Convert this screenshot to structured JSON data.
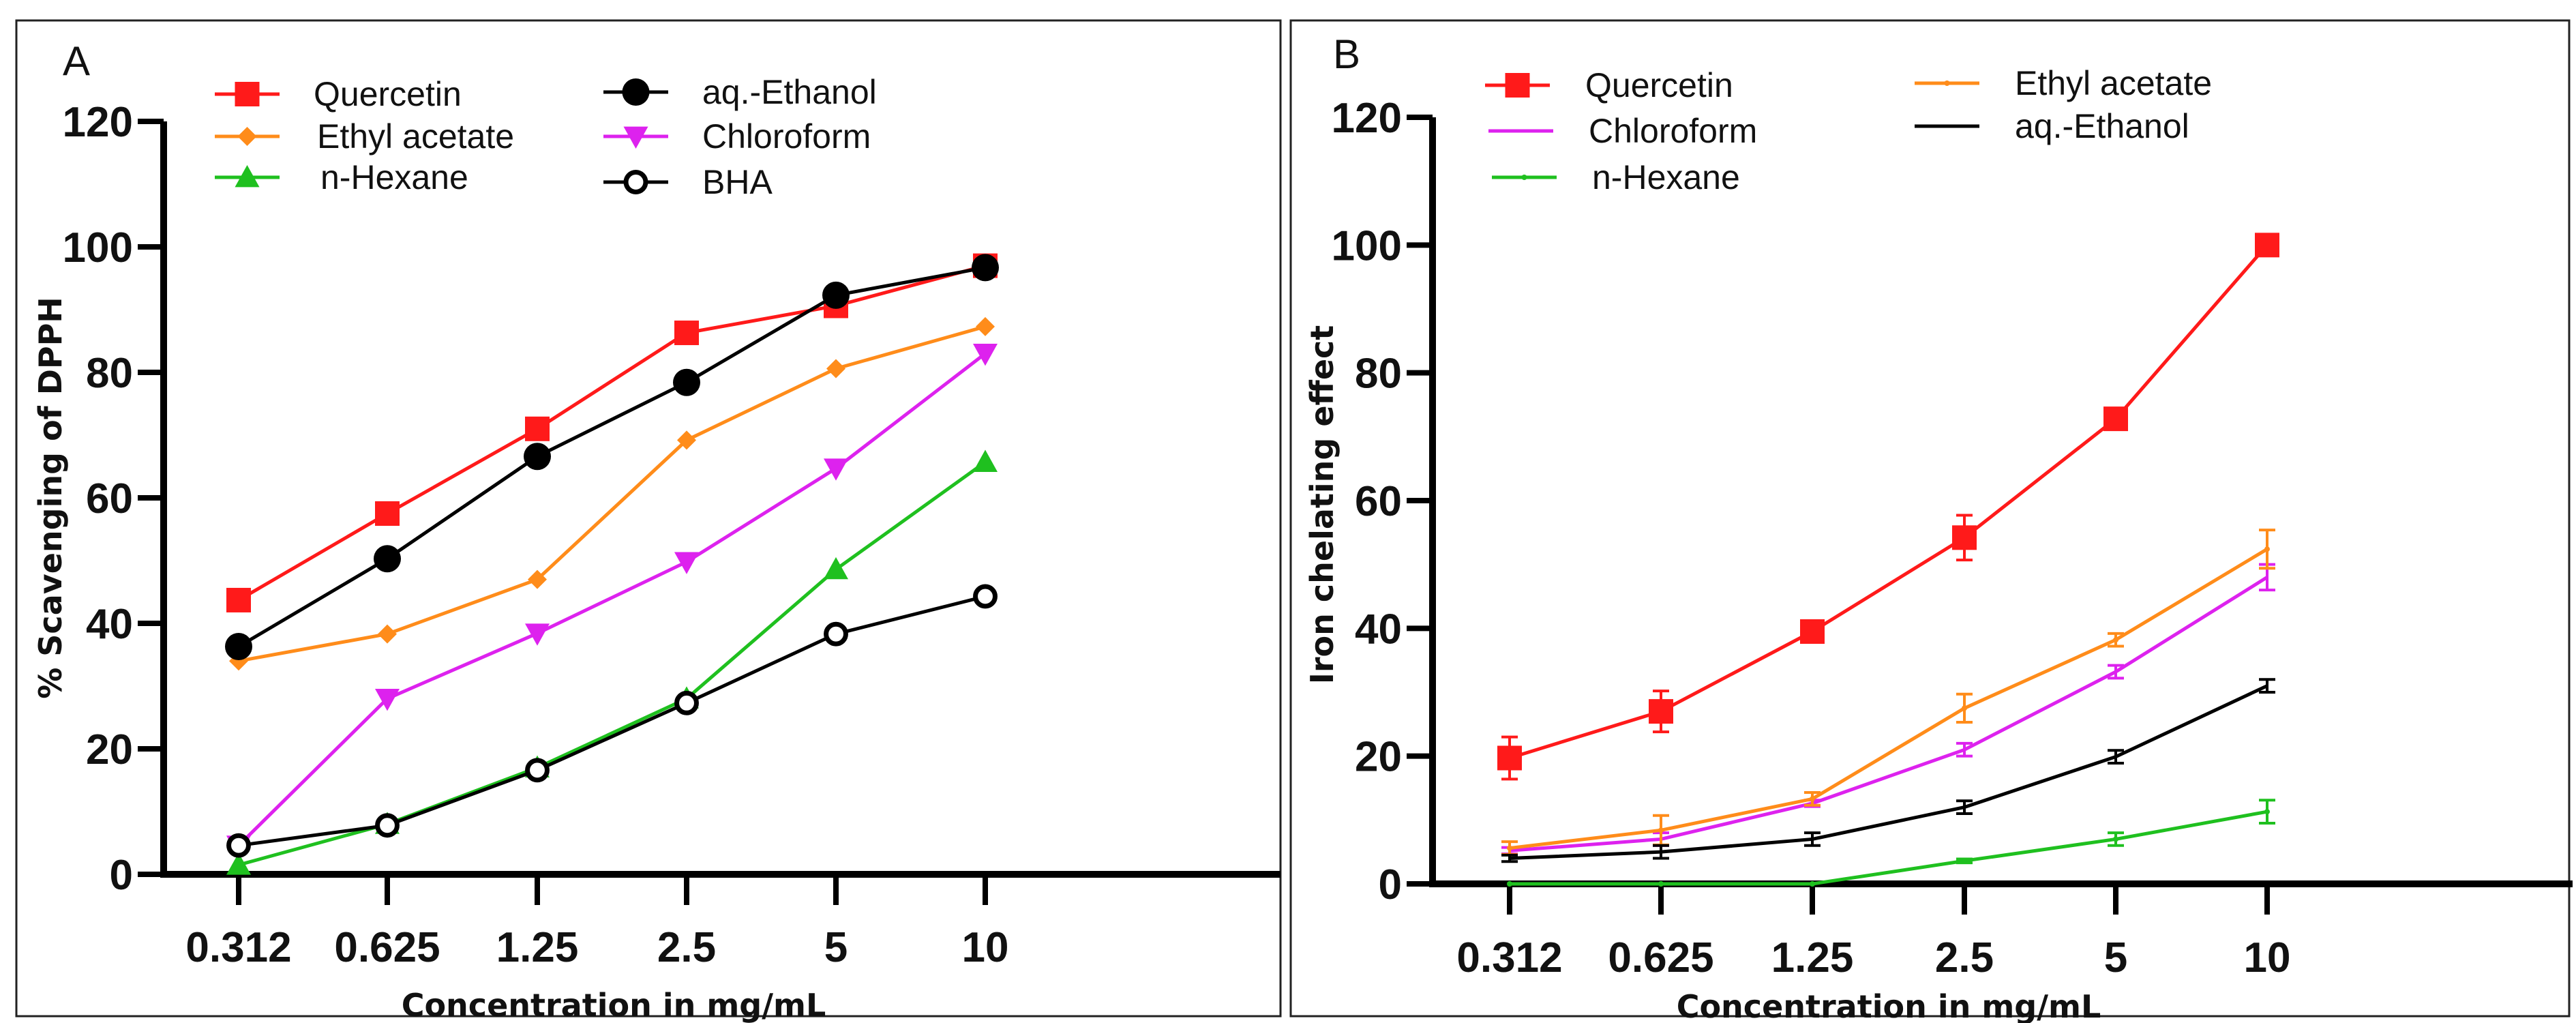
{
  "chart_data": [
    {
      "type": "line",
      "panel_label": "A",
      "title": "",
      "xlabel": "Concentration in mg/mL",
      "ylabel": "% Scavenging of DPPH",
      "categories": [
        "0.312",
        "0.625",
        "1.25",
        "2.5",
        "5",
        "10"
      ],
      "ylim": [
        0,
        120
      ],
      "yticks": [
        0,
        20,
        40,
        60,
        80,
        100,
        120
      ],
      "grid": false,
      "legend_position": "top",
      "series": [
        {
          "name": "Quercetin",
          "color": "#ff1a1a",
          "marker": "square",
          "values": [
            43.7,
            57.5,
            71.0,
            86.3,
            90.6,
            97.0
          ]
        },
        {
          "name": "Ethyl acetate",
          "color": "#ff8c1a",
          "marker": "diamond",
          "values": [
            34.0,
            38.3,
            47.0,
            69.2,
            80.6,
            87.3
          ]
        },
        {
          "name": "n-Hexane",
          "color": "#1fc01f",
          "marker": "triangle-up",
          "values": [
            1.5,
            8.0,
            17.0,
            28.0,
            48.6,
            65.7
          ]
        },
        {
          "name": "aq.-Ethanol",
          "color": "#000000",
          "marker": "circle",
          "values": [
            36.3,
            50.3,
            66.6,
            78.4,
            92.3,
            96.7
          ]
        },
        {
          "name": "Chloroform",
          "color": "#dd22ee",
          "marker": "triangle-down",
          "values": [
            4.6,
            28.0,
            38.4,
            49.8,
            64.7,
            83.0
          ]
        },
        {
          "name": "BHA",
          "color": "#000000",
          "marker": "open-circle",
          "values": [
            4.6,
            7.8,
            16.6,
            27.3,
            38.3,
            44.3
          ]
        }
      ]
    },
    {
      "type": "line",
      "panel_label": "B",
      "title": "",
      "xlabel": "Concentration in mg/mL",
      "ylabel": "Iron chelating effect",
      "categories": [
        "0.312",
        "0.625",
        "1.25",
        "2.5",
        "5",
        "10"
      ],
      "ylim": [
        0,
        120
      ],
      "yticks": [
        0,
        20,
        40,
        60,
        80,
        100,
        120
      ],
      "grid": false,
      "legend_position": "top",
      "series": [
        {
          "name": "Quercetin",
          "color": "#ff1a1a",
          "marker": "square",
          "values": [
            19.7,
            27.0,
            39.5,
            54.2,
            72.8,
            100.0
          ],
          "errors": [
            3.3,
            3.2,
            1.0,
            3.5,
            1.0,
            1.0
          ]
        },
        {
          "name": "Chloroform",
          "color": "#dd22ee",
          "marker": "none",
          "values": [
            5.2,
            7.0,
            12.6,
            21.0,
            33.2,
            48.0
          ],
          "errors": [
            0.5,
            1.0,
            0.5,
            1.0,
            1.0,
            2.0
          ]
        },
        {
          "name": "n-Hexane",
          "color": "#1fc01f",
          "marker": "dot",
          "values": [
            0.0,
            0.0,
            0.0,
            3.6,
            7.0,
            11.3
          ],
          "errors": [
            0,
            0,
            0,
            0.3,
            1.0,
            1.8
          ]
        },
        {
          "name": "Ethyl acetate",
          "color": "#ff8c1a",
          "marker": "dot",
          "values": [
            5.6,
            8.4,
            13.3,
            27.5,
            38.2,
            52.4
          ],
          "errors": [
            1.0,
            2.3,
            1.0,
            2.2,
            1.0,
            3.0
          ]
        },
        {
          "name": "aq.-Ethanol",
          "color": "#000000",
          "marker": "none",
          "values": [
            4.0,
            5.0,
            7.0,
            12.0,
            19.9,
            31.0
          ],
          "errors": [
            0.5,
            1.0,
            1.0,
            1.0,
            1.0,
            1.0
          ]
        }
      ]
    }
  ]
}
